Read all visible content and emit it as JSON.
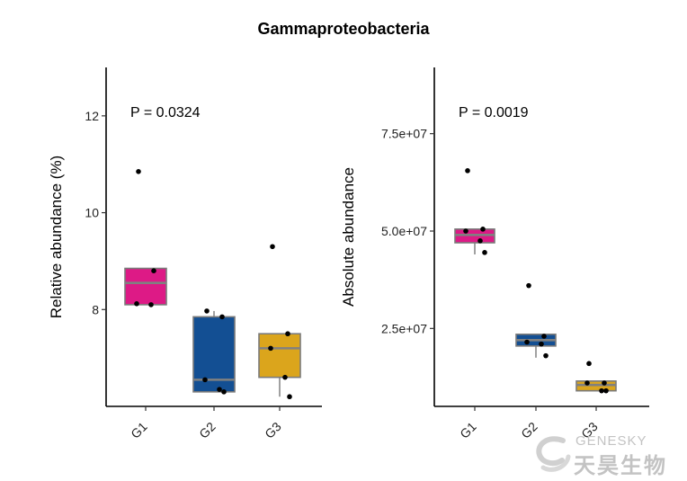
{
  "title": "Gammaproteobacteria",
  "colors": {
    "G1": "#dd1a86",
    "G2": "#134f93",
    "G3": "#dba51c",
    "median": "#808080"
  },
  "chart_data": [
    {
      "type": "box",
      "title": "Gammaproteobacteria",
      "ylabel": "Relative abundance (%)",
      "xlabel": "",
      "categories": [
        "G1",
        "G2",
        "G3"
      ],
      "ylim": [
        6.0,
        13.0
      ],
      "yticks": [
        8,
        10,
        12
      ],
      "ytick_labels": [
        "8",
        "10",
        "12"
      ],
      "annotation": "P = 0.0324",
      "grid": false,
      "boxes": [
        {
          "group": "G1",
          "q1": 8.1,
          "median": 8.55,
          "q3": 8.85,
          "whisker_low": 8.1,
          "whisker_high": 8.85
        },
        {
          "group": "G2",
          "q1": 6.3,
          "median": 6.55,
          "q3": 7.85,
          "whisker_low": 6.3,
          "whisker_high": 7.97
        },
        {
          "group": "G3",
          "q1": 6.6,
          "median": 7.2,
          "q3": 7.5,
          "whisker_low": 6.2,
          "whisker_high": 7.5
        }
      ],
      "points": [
        {
          "group": "G1",
          "values": [
            10.85,
            8.8,
            8.12,
            8.1
          ]
        },
        {
          "group": "G2",
          "values": [
            7.97,
            7.85,
            6.55,
            6.35,
            6.3
          ]
        },
        {
          "group": "G3",
          "values": [
            9.3,
            7.5,
            7.2,
            6.6,
            6.2
          ]
        }
      ]
    },
    {
      "type": "box",
      "ylabel": "Absolute abundance",
      "xlabel": "",
      "categories": [
        "G1",
        "G2",
        "G3"
      ],
      "ylim": [
        5000000,
        92000000
      ],
      "yticks": [
        25000000,
        50000000,
        75000000
      ],
      "ytick_labels": [
        "2.5e+07",
        "5.0e+07",
        "7.5e+07"
      ],
      "annotation": "P = 0.0019",
      "grid": false,
      "boxes": [
        {
          "group": "G1",
          "q1": 47000000,
          "median": 49000000,
          "q3": 50500000,
          "whisker_low": 44000000,
          "whisker_high": 50500000
        },
        {
          "group": "G2",
          "q1": 20500000,
          "median": 22000000,
          "q3": 23500000,
          "whisker_low": 17500000,
          "whisker_high": 23500000
        },
        {
          "group": "G3",
          "q1": 9000000,
          "median": 10500000,
          "q3": 11500000,
          "whisker_low": 9000000,
          "whisker_high": 11500000
        }
      ],
      "points": [
        {
          "group": "G1",
          "values": [
            65500000,
            50500000,
            50000000,
            47500000,
            44500000
          ]
        },
        {
          "group": "G2",
          "values": [
            36000000,
            23000000,
            21500000,
            21000000,
            18000000
          ]
        },
        {
          "group": "G3",
          "values": [
            16000000,
            11000000,
            11000000,
            9000000,
            9000000
          ]
        }
      ]
    }
  ],
  "watermark": {
    "line1": "GENESKY",
    "line2": "天昊生物"
  }
}
